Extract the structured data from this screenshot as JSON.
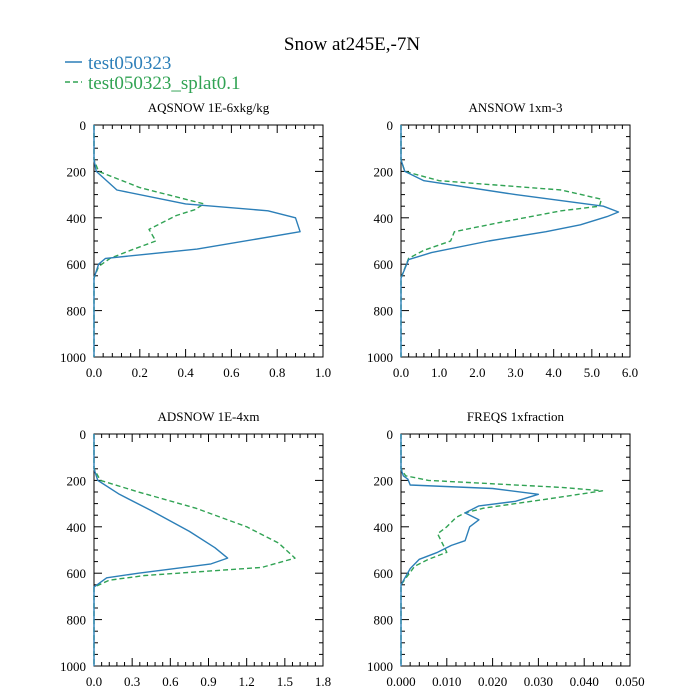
{
  "suptitle": "Snow at245E,-7N",
  "legend": [
    {
      "name": "test050323",
      "color": "#2c7fb8",
      "dash": "solid"
    },
    {
      "name": "test050323_splat0.1",
      "color": "#31a354",
      "dash": "dashed"
    }
  ],
  "chart_data": [
    {
      "type": "line",
      "title": "AQSNOW  1E-6xkg/kg",
      "xlim": [
        0,
        1.0
      ],
      "ylim": [
        1000,
        0
      ],
      "xticks": [
        0,
        0.2,
        0.4,
        0.6,
        0.8,
        1.0
      ],
      "xticklabels": [
        "0.0",
        "0.2",
        "0.4",
        "0.6",
        "0.8",
        "1.0"
      ],
      "yticks": [
        0,
        200,
        400,
        600,
        800,
        1000
      ],
      "yticklabels": [
        "0",
        "200",
        "400",
        "600",
        "800",
        "1000"
      ],
      "series": [
        {
          "name": "test050323",
          "x": [
            0,
            0.01,
            0.1,
            0.4,
            0.76,
            0.88,
            0.9,
            0.45,
            0.05,
            0.02,
            0.0
          ],
          "y": [
            150,
            200,
            280,
            340,
            370,
            400,
            460,
            535,
            575,
            600,
            660
          ]
        },
        {
          "name": "test050323_splat0.1",
          "x": [
            0,
            0.02,
            0.2,
            0.48,
            0.44,
            0.36,
            0.3,
            0.24,
            0.27,
            0.16,
            0.07,
            0.02,
            0.0
          ],
          "y": [
            150,
            200,
            270,
            340,
            365,
            390,
            420,
            450,
            500,
            540,
            575,
            610,
            660
          ]
        }
      ]
    },
    {
      "type": "line",
      "title": "ANSNOW  1xm-3",
      "xlim": [
        0,
        6.0
      ],
      "ylim": [
        1000,
        0
      ],
      "xticks": [
        0,
        1,
        2,
        3,
        4,
        5,
        6
      ],
      "xticklabels": [
        "0.0",
        "1.0",
        "2.0",
        "3.0",
        "4.0",
        "5.0",
        "6.0"
      ],
      "yticks": [
        0,
        200,
        400,
        600,
        800,
        1000
      ],
      "yticklabels": [
        "0",
        "200",
        "400",
        "600",
        "800",
        "1000"
      ],
      "series": [
        {
          "name": "test050323",
          "x": [
            0,
            0.1,
            0.6,
            3.0,
            5.3,
            5.7,
            5.4,
            4.7,
            3.8,
            2.3,
            0.8,
            0.2,
            0.0
          ],
          "y": [
            150,
            200,
            240,
            300,
            350,
            375,
            395,
            430,
            460,
            500,
            550,
            580,
            660
          ]
        },
        {
          "name": "test050323_splat0.1",
          "x": [
            0,
            0.1,
            1.0,
            4.2,
            5.25,
            5.2,
            4.2,
            2.6,
            1.4,
            1.3,
            0.6,
            0.2,
            0.0
          ],
          "y": [
            150,
            200,
            240,
            280,
            320,
            350,
            370,
            420,
            460,
            500,
            540,
            575,
            660
          ]
        }
      ]
    },
    {
      "type": "line",
      "title": "ADSNOW  1E-4xm",
      "xlim": [
        0,
        1.8
      ],
      "ylim": [
        1000,
        0
      ],
      "xticks": [
        0,
        0.3,
        0.6,
        0.9,
        1.2,
        1.5,
        1.8
      ],
      "xticklabels": [
        "0.0",
        "0.3",
        "0.6",
        "0.9",
        "1.2",
        "1.5",
        "1.8"
      ],
      "yticks": [
        0,
        200,
        400,
        600,
        800,
        1000
      ],
      "yticklabels": [
        "0",
        "200",
        "400",
        "600",
        "800",
        "1000"
      ],
      "series": [
        {
          "name": "test050323",
          "x": [
            0,
            0.03,
            0.2,
            0.45,
            0.75,
            0.95,
            1.05,
            0.92,
            0.35,
            0.1,
            0.0
          ],
          "y": [
            150,
            200,
            260,
            330,
            420,
            490,
            535,
            560,
            600,
            620,
            660
          ]
        },
        {
          "name": "test050323_splat0.1",
          "x": [
            0,
            0.05,
            0.35,
            0.8,
            1.2,
            1.45,
            1.58,
            1.32,
            0.4,
            0.12,
            0.0
          ],
          "y": [
            150,
            200,
            250,
            320,
            400,
            470,
            535,
            575,
            610,
            630,
            660
          ]
        }
      ]
    },
    {
      "type": "line",
      "title": "FREQS  1xfraction",
      "xlim": [
        0,
        0.05
      ],
      "ylim": [
        1000,
        0
      ],
      "xticks": [
        0,
        0.01,
        0.02,
        0.03,
        0.04,
        0.05
      ],
      "xticklabels": [
        "0.000",
        "0.010",
        "0.020",
        "0.030",
        "0.040",
        "0.050"
      ],
      "yticks": [
        0,
        200,
        400,
        600,
        800,
        1000
      ],
      "yticklabels": [
        "0",
        "200",
        "400",
        "600",
        "800",
        "1000"
      ],
      "series": [
        {
          "name": "test050323",
          "x": [
            0,
            0.0005,
            0.0015,
            0.002,
            0.02,
            0.03,
            0.025,
            0.017,
            0.014,
            0.017,
            0.015,
            0.014,
            0.011,
            0.008,
            0.004,
            0.002,
            0.0
          ],
          "y": [
            150,
            180,
            195,
            220,
            235,
            260,
            290,
            310,
            340,
            370,
            400,
            460,
            480,
            510,
            540,
            580,
            650
          ]
        },
        {
          "name": "test050323_splat0.1",
          "x": [
            0,
            0.001,
            0.006,
            0.035,
            0.044,
            0.032,
            0.018,
            0.014,
            0.012,
            0.01,
            0.008,
            0.009,
            0.01,
            0.006,
            0.003,
            0.0
          ],
          "y": [
            150,
            180,
            200,
            230,
            245,
            280,
            320,
            340,
            360,
            400,
            430,
            470,
            510,
            540,
            570,
            650
          ]
        }
      ]
    }
  ]
}
